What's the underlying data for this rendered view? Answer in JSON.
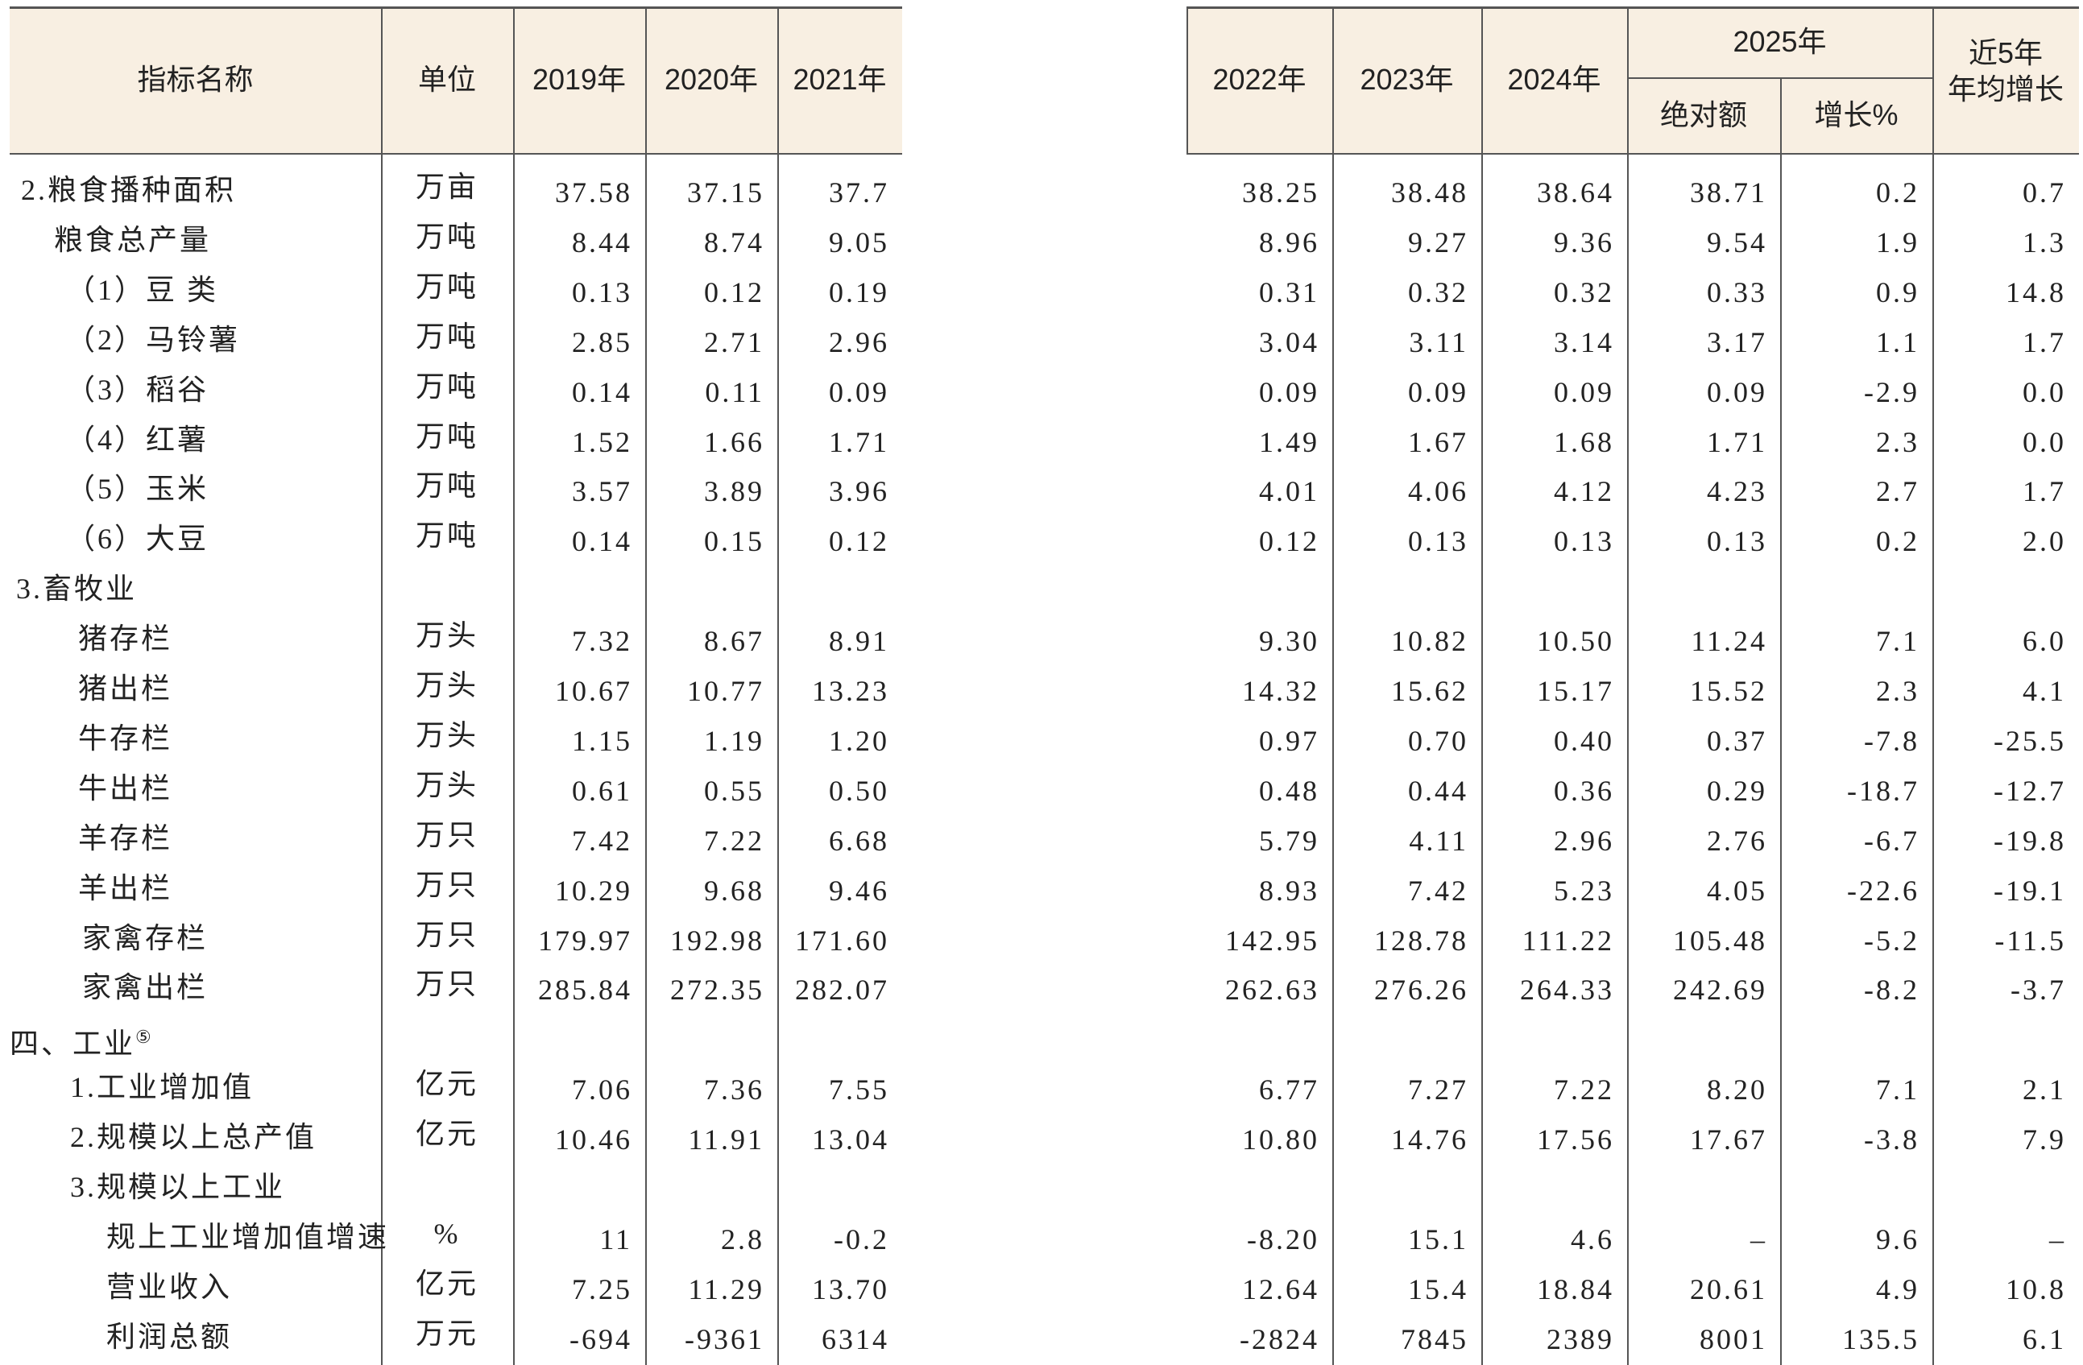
{
  "header": {
    "name": "指标名称",
    "unit": "单位",
    "years": [
      "2019年",
      "2020年",
      "2021年",
      "2022年",
      "2023年",
      "2024年"
    ],
    "group": "2025年",
    "group_cols": [
      "绝对额",
      "增长%"
    ],
    "last": [
      "近5年",
      "年均增长"
    ]
  },
  "rows": [
    {
      "name": "2.粮食播种面积",
      "unit": "万亩",
      "values": [
        "37.58",
        "37.15",
        "37.7",
        "38.25",
        "38.48",
        "38.64",
        "38.71",
        "0.2",
        "0.7"
      ]
    },
    {
      "name": "粮食总产量",
      "unit": "万吨",
      "values": [
        "8.44",
        "8.74",
        "9.05",
        "8.96",
        "9.27",
        "9.36",
        "9.54",
        "1.9",
        "1.3"
      ]
    },
    {
      "name": "（1）豆 类",
      "unit": "万吨",
      "values": [
        "0.13",
        "0.12",
        "0.19",
        "0.31",
        "0.32",
        "0.32",
        "0.33",
        "0.9",
        "14.8"
      ]
    },
    {
      "name": "（2）马铃薯",
      "unit": "万吨",
      "values": [
        "2.85",
        "2.71",
        "2.96",
        "3.04",
        "3.11",
        "3.14",
        "3.17",
        "1.1",
        "1.7"
      ]
    },
    {
      "name": "（3）稻谷",
      "unit": "万吨",
      "values": [
        "0.14",
        "0.11",
        "0.09",
        "0.09",
        "0.09",
        "0.09",
        "0.09",
        "-2.9",
        "0.0"
      ]
    },
    {
      "name": "（4）红薯",
      "unit": "万吨",
      "values": [
        "1.52",
        "1.66",
        "1.71",
        "1.49",
        "1.67",
        "1.68",
        "1.71",
        "2.3",
        "0.0"
      ]
    },
    {
      "name": "（5）玉米",
      "unit": "万吨",
      "values": [
        "3.57",
        "3.89",
        "3.96",
        "4.01",
        "4.06",
        "4.12",
        "4.23",
        "2.7",
        "1.7"
      ]
    },
    {
      "name": "（6）大豆",
      "unit": "万吨",
      "values": [
        "0.14",
        "0.15",
        "0.12",
        "0.12",
        "0.13",
        "0.13",
        "0.13",
        "0.2",
        "2.0"
      ]
    },
    {
      "name": "3.畜牧业",
      "values": []
    },
    {
      "name": "猪存栏",
      "unit": "万头",
      "values": [
        "7.32",
        "8.67",
        "8.91",
        "9.30",
        "10.82",
        "10.50",
        "11.24",
        "7.1",
        "6.0"
      ]
    },
    {
      "name": "猪出栏",
      "unit": "万头",
      "values": [
        "10.67",
        "10.77",
        "13.23",
        "14.32",
        "15.62",
        "15.17",
        "15.52",
        "2.3",
        "4.1"
      ]
    },
    {
      "name": "牛存栏",
      "unit": "万头",
      "values": [
        "1.15",
        "1.19",
        "1.20",
        "0.97",
        "0.70",
        "0.40",
        "0.37",
        "-7.8",
        "-25.5"
      ]
    },
    {
      "name": "牛出栏",
      "unit": "万头",
      "values": [
        "0.61",
        "0.55",
        "0.50",
        "0.48",
        "0.44",
        "0.36",
        "0.29",
        "-18.7",
        "-12.7"
      ]
    },
    {
      "name": "羊存栏",
      "unit": "万只",
      "values": [
        "7.42",
        "7.22",
        "6.68",
        "5.79",
        "4.11",
        "2.96",
        "2.76",
        "-6.7",
        "-19.8"
      ]
    },
    {
      "name": "羊出栏",
      "unit": "万只",
      "values": [
        "10.29",
        "9.68",
        "9.46",
        "8.93",
        "7.42",
        "5.23",
        "4.05",
        "-22.6",
        "-19.1"
      ]
    },
    {
      "name": "家禽存栏",
      "unit": "万只",
      "values": [
        "179.97",
        "192.98",
        "171.60",
        "142.95",
        "128.78",
        "111.22",
        "105.48",
        "-5.2",
        "-11.5"
      ]
    },
    {
      "name": "家禽出栏",
      "unit": "万只",
      "values": [
        "285.84",
        "272.35",
        "282.07",
        "262.63",
        "276.26",
        "264.33",
        "242.69",
        "-8.2",
        "-3.7"
      ]
    },
    {
      "name": "四、工业",
      "note": "⑤",
      "values": []
    },
    {
      "name": "1.工业增加值",
      "unit": "亿元",
      "values": [
        "7.06",
        "7.36",
        "7.55",
        "6.77",
        "7.27",
        "7.22",
        "8.20",
        "7.1",
        "2.1"
      ]
    },
    {
      "name": "2.规模以上总产值",
      "unit": "亿元",
      "values": [
        "10.46",
        "11.91",
        "13.04",
        "10.80",
        "14.76",
        "17.56",
        "17.67",
        "-3.8",
        "7.9"
      ]
    },
    {
      "name": "3.规模以上工业",
      "values": []
    },
    {
      "name": "规上工业增加值增速",
      "unit": "%",
      "values": [
        "11",
        "2.8",
        "-0.2",
        "-8.20",
        "15.1",
        "4.6",
        "–",
        "9.6",
        "–"
      ]
    },
    {
      "name": "营业收入",
      "unit": "亿元",
      "values": [
        "7.25",
        "11.29",
        "13.70",
        "12.64",
        "15.4",
        "18.84",
        "20.61",
        "4.9",
        "10.8"
      ]
    },
    {
      "name": "利润总额",
      "unit": "万元",
      "values": [
        "-694",
        "-9361",
        "6314",
        "-2824",
        "7845",
        "2389",
        "8001",
        "135.5",
        "6.1"
      ]
    }
  ]
}
